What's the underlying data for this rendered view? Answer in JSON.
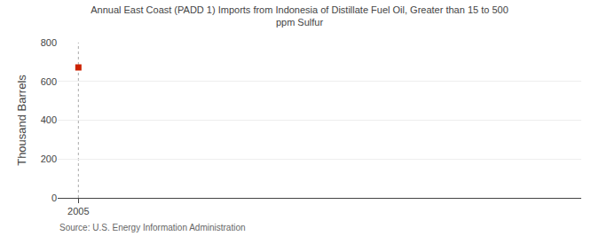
{
  "chart_data": {
    "type": "scatter",
    "title": "Annual East Coast (PADD 1) Imports from Indonesia of Distillate Fuel Oil, Greater than 15 to 500\nppm Sulfur",
    "ylabel": "Thousand Barrels",
    "annotations": [
      "Source: U.S. Energy Information Administration"
    ],
    "x": [
      2005
    ],
    "values": [
      672
    ],
    "color": "#cc2200",
    "marker": "square",
    "vlines": [
      2005
    ],
    "xlim": [
      2004.3,
      2022
    ],
    "ylim": [
      0,
      800
    ],
    "xticks": [
      2005
    ],
    "yticks": [
      0,
      200,
      400,
      600,
      800
    ],
    "grid": true
  }
}
